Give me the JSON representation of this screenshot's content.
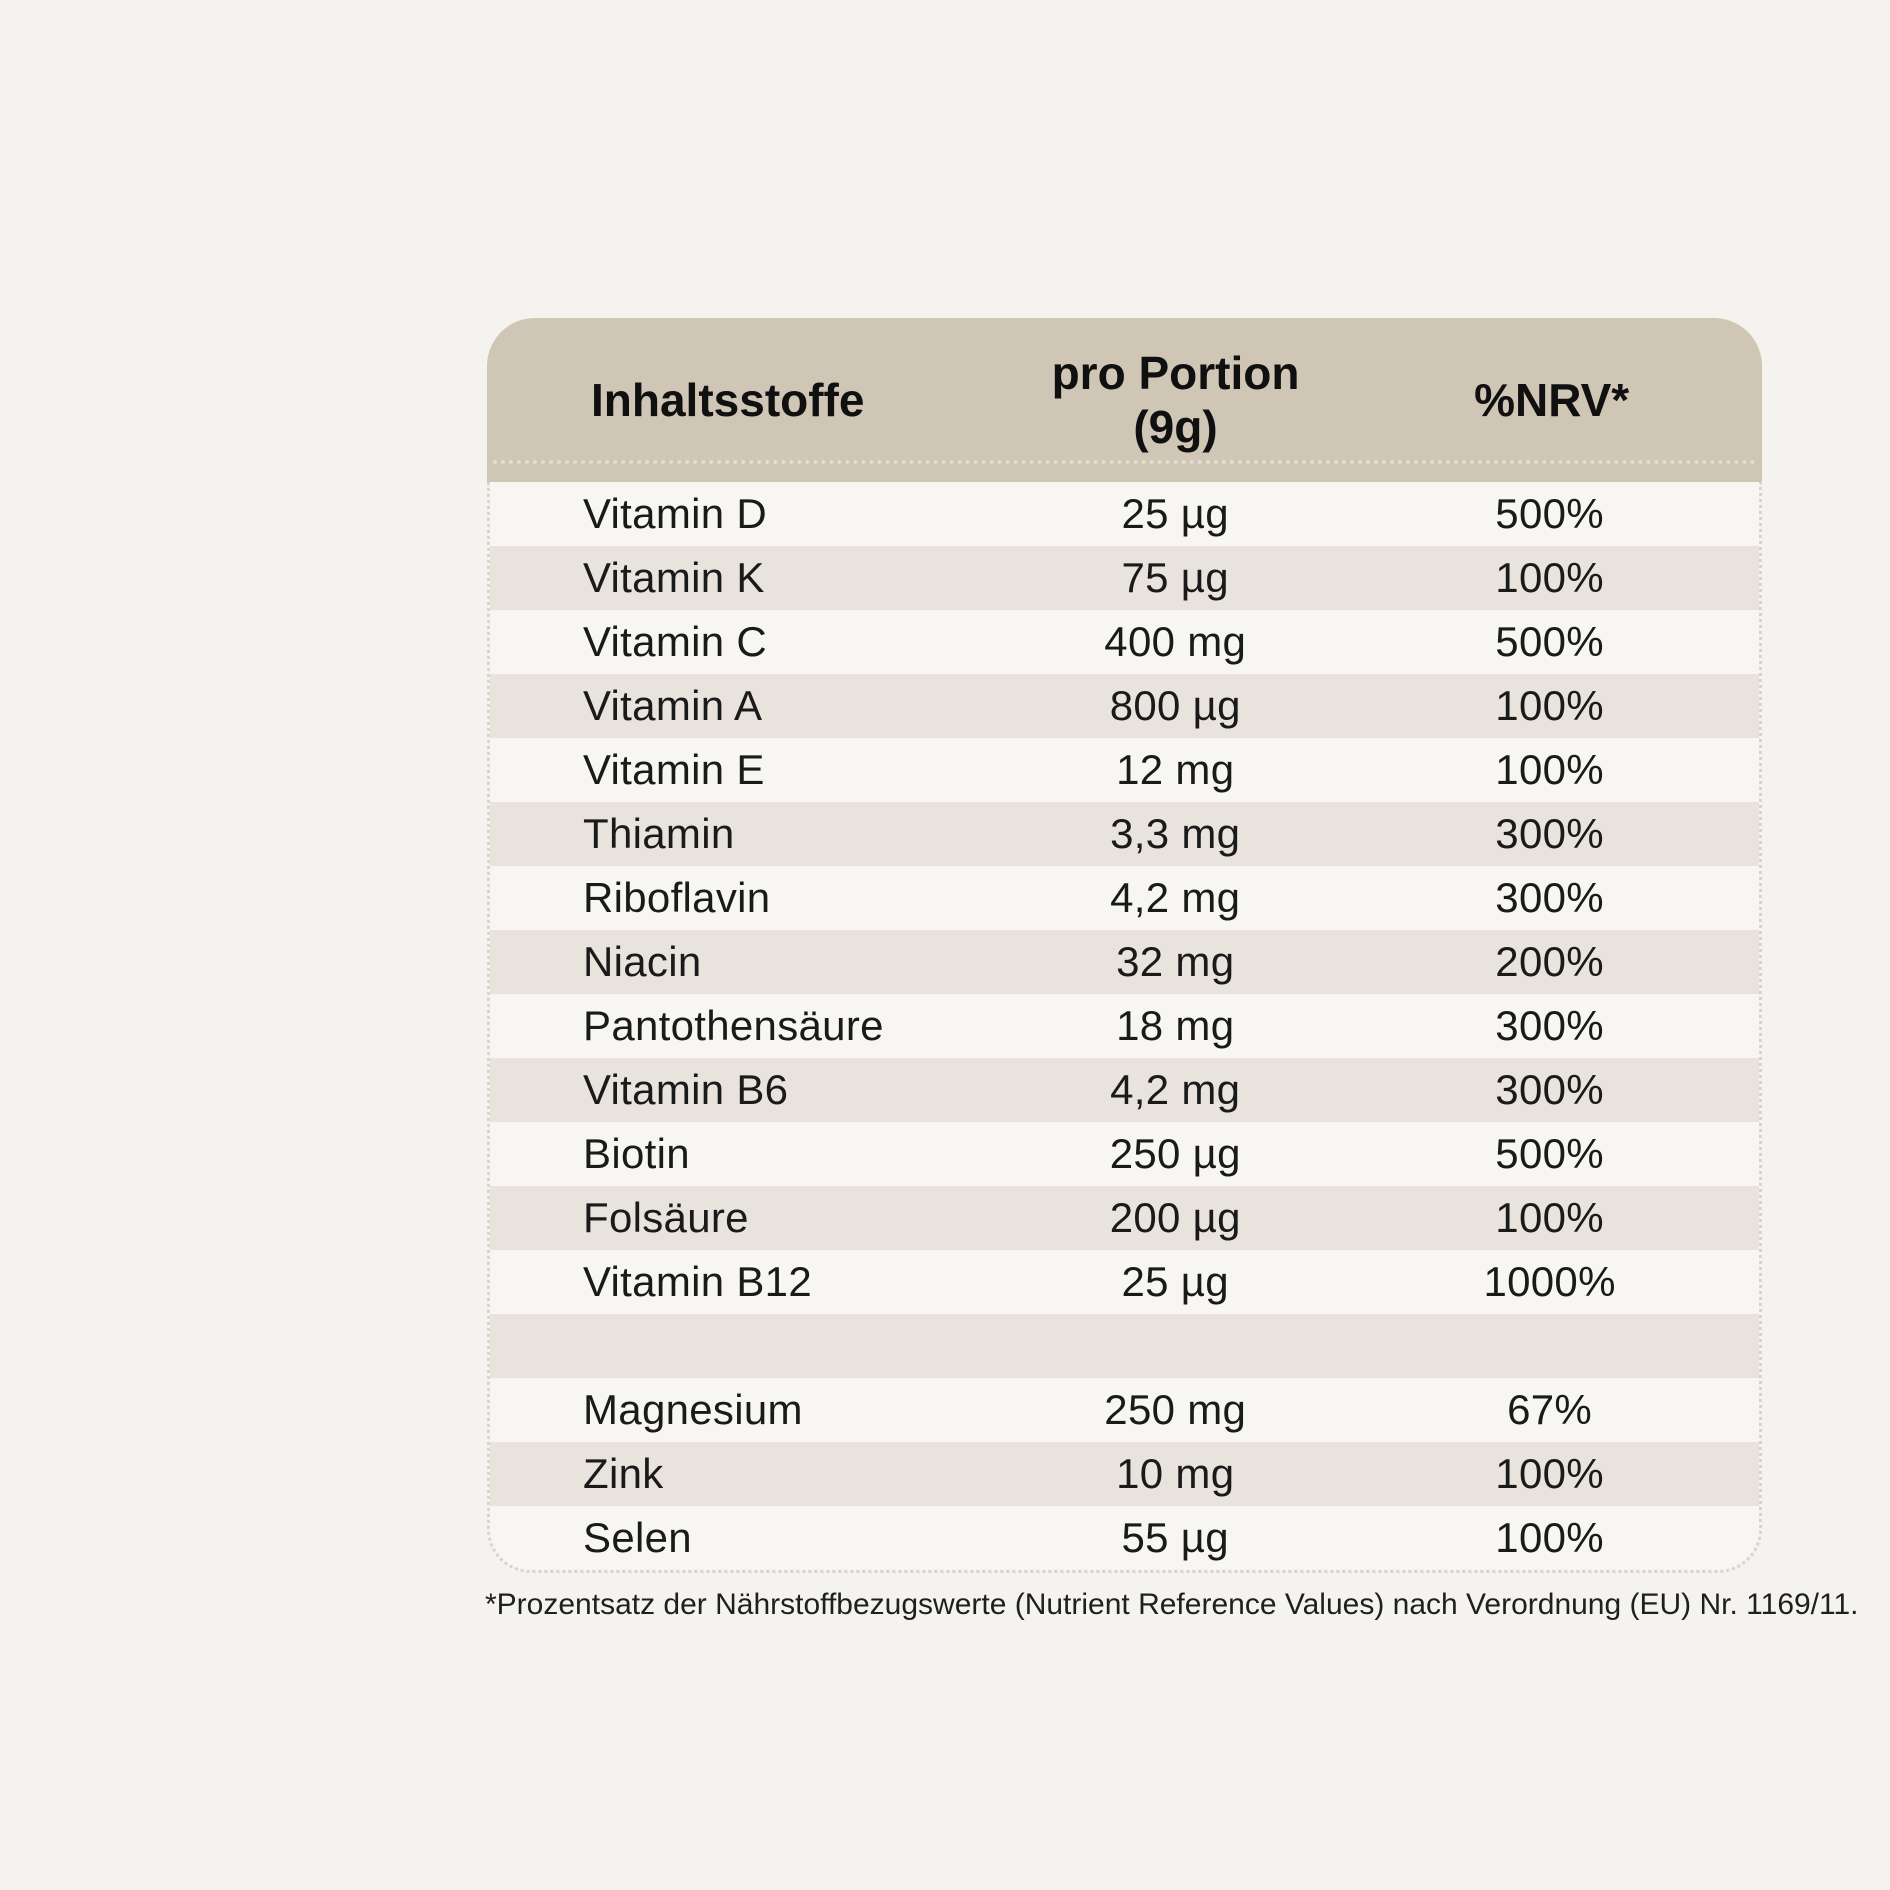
{
  "colors": {
    "page-bg": "#f4f3f0",
    "header-bg": "#cfc6b5",
    "row-light": "#f7f6f3",
    "row-dark": "#e8e3dc",
    "dash": "#d9d3c8"
  },
  "table": {
    "columns": {
      "name": "Inhaltsstoffe",
      "amount": "pro Portion (9g)",
      "nrv": "%NRV*"
    },
    "rows": [
      {
        "name": "Vitamin D",
        "amount": "25 µg",
        "nrv": "500%"
      },
      {
        "name": "Vitamin K",
        "amount": "75 µg",
        "nrv": "100%"
      },
      {
        "name": "Vitamin C",
        "amount": "400 mg",
        "nrv": "500%"
      },
      {
        "name": "Vitamin A",
        "amount": "800 µg",
        "nrv": "100%"
      },
      {
        "name": "Vitamin E",
        "amount": "12 mg",
        "nrv": "100%"
      },
      {
        "name": "Thiamin",
        "amount": "3,3 mg",
        "nrv": "300%"
      },
      {
        "name": "Riboflavin",
        "amount": "4,2 mg",
        "nrv": "300%"
      },
      {
        "name": "Niacin",
        "amount": "32 mg",
        "nrv": "200%"
      },
      {
        "name": "Pantothensäure",
        "amount": "18 mg",
        "nrv": "300%"
      },
      {
        "name": "Vitamin B6",
        "amount": "4,2 mg",
        "nrv": "300%"
      },
      {
        "name": "Biotin",
        "amount": "250 µg",
        "nrv": "500%"
      },
      {
        "name": "Folsäure",
        "amount": "200 µg",
        "nrv": "100%"
      },
      {
        "name": "Vitamin B12",
        "amount": "25 µg",
        "nrv": "1000%"
      },
      {
        "name": "",
        "amount": "",
        "nrv": ""
      },
      {
        "name": "Magnesium",
        "amount": "250 mg",
        "nrv": "67%"
      },
      {
        "name": "Zink",
        "amount": "10 mg",
        "nrv": "100%"
      },
      {
        "name": "Selen",
        "amount": "55 µg",
        "nrv": "100%"
      }
    ],
    "footnote": "*Prozentsatz der Nährstoffbezugswerte (Nutrient Reference Values) nach Verordnung (EU) Nr. 1169/11."
  }
}
